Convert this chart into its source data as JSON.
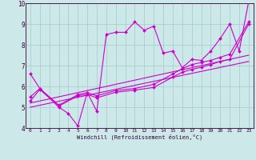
{
  "background_color": "#cce8e8",
  "line_color": "#cc00cc",
  "grid_color": "#aacfcf",
  "axis_color": "#330033",
  "xlabel": "Windchill (Refroidissement éolien,°C)",
  "xlim": [
    -0.5,
    23.5
  ],
  "ylim": [
    4,
    10
  ],
  "yticks": [
    4,
    5,
    6,
    7,
    8,
    9,
    10
  ],
  "xticks": [
    0,
    1,
    2,
    3,
    4,
    5,
    6,
    7,
    8,
    9,
    10,
    11,
    12,
    13,
    14,
    15,
    16,
    17,
    18,
    19,
    20,
    21,
    22,
    23
  ],
  "series1": {
    "x": [
      0,
      1,
      3,
      4,
      5,
      6,
      7,
      8,
      9,
      10,
      11,
      12,
      13,
      14,
      15,
      16,
      17,
      18,
      19,
      20,
      21,
      22,
      23
    ],
    "y": [
      6.6,
      5.9,
      5.0,
      4.7,
      4.1,
      5.7,
      4.8,
      8.5,
      8.6,
      8.6,
      9.1,
      8.7,
      8.9,
      7.6,
      7.7,
      6.9,
      7.3,
      7.25,
      7.7,
      8.3,
      9.0,
      7.7,
      10.1
    ]
  },
  "series2": {
    "x": [
      0,
      1,
      3,
      5,
      6,
      7,
      9,
      11,
      13,
      15,
      16,
      17,
      18,
      19,
      20,
      21,
      23
    ],
    "y": [
      5.5,
      5.9,
      5.1,
      5.6,
      5.7,
      5.55,
      5.8,
      5.9,
      6.1,
      6.6,
      6.85,
      7.05,
      7.15,
      7.25,
      7.4,
      7.55,
      9.1
    ]
  },
  "series3": {
    "x": [
      0,
      1,
      3,
      5,
      6,
      7,
      9,
      11,
      13,
      15,
      16,
      17,
      18,
      19,
      20,
      21,
      23
    ],
    "y": [
      5.3,
      5.85,
      5.05,
      5.55,
      5.62,
      5.45,
      5.72,
      5.82,
      5.95,
      6.45,
      6.68,
      6.82,
      6.92,
      7.05,
      7.2,
      7.3,
      9.0
    ]
  },
  "trend1": {
    "x": [
      0,
      23
    ],
    "y": [
      5.2,
      7.5
    ]
  },
  "trend2": {
    "x": [
      0,
      23
    ],
    "y": [
      5.0,
      7.2
    ]
  }
}
